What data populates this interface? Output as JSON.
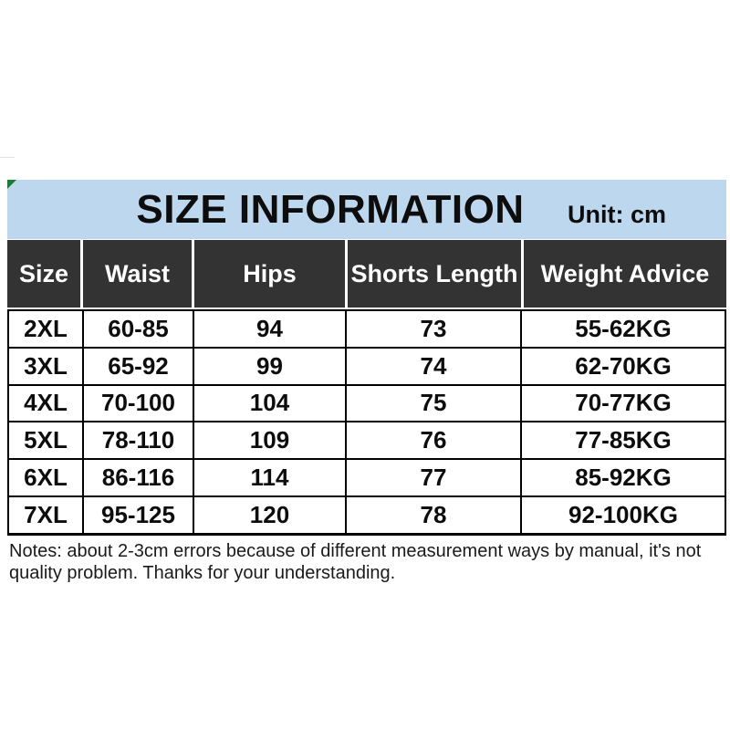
{
  "banner": {
    "title": "SIZE INFORMATION",
    "unit_label": "Unit: cm",
    "background_color": "#BDD7EE",
    "marker_color": "#1E7B34"
  },
  "table": {
    "header_background": "#333333",
    "columns": [
      "Size",
      "Waist",
      "Hips",
      "Shorts Length",
      "Weight Advice"
    ],
    "rows": [
      [
        "2XL",
        "60-85",
        "94",
        "73",
        "55-62KG"
      ],
      [
        "3XL",
        "65-92",
        "99",
        "74",
        "62-70KG"
      ],
      [
        "4XL",
        "70-100",
        "104",
        "75",
        "70-77KG"
      ],
      [
        "5XL",
        "78-110",
        "109",
        "76",
        "77-85KG"
      ],
      [
        "6XL",
        "86-116",
        "114",
        "77",
        "85-92KG"
      ],
      [
        "7XL",
        "95-125",
        "120",
        "78",
        "92-100KG"
      ]
    ]
  },
  "notes": {
    "line1": "Notes: about 2-3cm errors because of different measurement ways by manual, it's not",
    "line2": "quality problem.  Thanks for your understanding."
  },
  "chart_data": {
    "type": "table",
    "title": "SIZE INFORMATION",
    "unit": "cm",
    "columns": [
      "Size",
      "Waist",
      "Hips",
      "Shorts Length",
      "Weight Advice"
    ],
    "rows": [
      {
        "size": "2XL",
        "waist": "60-85",
        "hips": 94,
        "shorts_length": 73,
        "weight_advice": "55-62KG"
      },
      {
        "size": "3XL",
        "waist": "65-92",
        "hips": 99,
        "shorts_length": 74,
        "weight_advice": "62-70KG"
      },
      {
        "size": "4XL",
        "waist": "70-100",
        "hips": 104,
        "shorts_length": 75,
        "weight_advice": "70-77KG"
      },
      {
        "size": "5XL",
        "waist": "78-110",
        "hips": 109,
        "shorts_length": 76,
        "weight_advice": "77-85KG"
      },
      {
        "size": "6XL",
        "waist": "86-116",
        "hips": 114,
        "shorts_length": 77,
        "weight_advice": "85-92KG"
      },
      {
        "size": "7XL",
        "waist": "95-125",
        "hips": 120,
        "shorts_length": 78,
        "weight_advice": "92-100KG"
      }
    ],
    "notes": "Notes: about 2-3cm errors because of different measurement ways by manual, it's not quality problem.  Thanks for your understanding."
  }
}
